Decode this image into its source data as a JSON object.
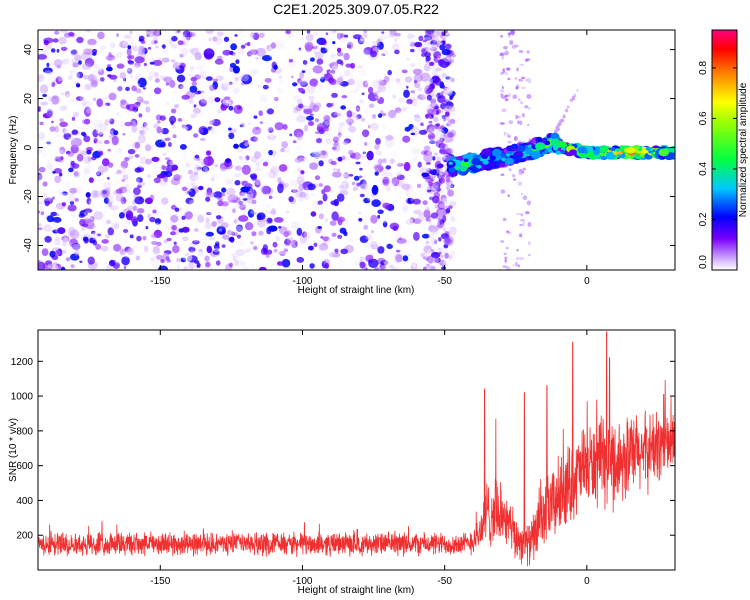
{
  "figure_title": "C2E1.2025.309.07.05.R22",
  "chart_data": [
    {
      "type": "heatmap",
      "title": "C2E1.2025.309.07.05.R22",
      "xlabel": "Height of straight line (km)",
      "ylabel": "Frequency (Hz)",
      "xlim": [
        -193,
        31
      ],
      "ylim": [
        -50,
        48
      ],
      "xticks": [
        -150,
        -100,
        -50,
        0
      ],
      "xtick_labels": [
        "-150",
        "-100",
        "-50",
        "0"
      ],
      "yticks": [
        -40,
        -20,
        0,
        20,
        40
      ],
      "ytick_labels": [
        "-40",
        "-20",
        "0",
        "20",
        "40"
      ],
      "colorbar": {
        "label": "Normalized spectral amplitude",
        "range": [
          0.0,
          0.95
        ],
        "ticks": [
          0.0,
          0.2,
          0.4,
          0.6,
          0.8
        ],
        "tick_labels": [
          "0.0",
          "0.2",
          "0.4",
          "0.6",
          "0.8"
        ],
        "colormap": [
          "#ffffff",
          "#7a00ff",
          "#0000ff",
          "#00c8ff",
          "#00ff40",
          "#ffff00",
          "#ff8000",
          "#ff0000",
          "#ff0080"
        ]
      },
      "features": {
        "noise_region_x": [
          -193,
          -47
        ],
        "sparse_streak_x": [
          -30,
          -20
        ],
        "signal_trace": {
          "x": [
            -48,
            -40,
            -30,
            -20,
            -12,
            -8,
            0,
            10,
            20,
            31
          ],
          "freq": [
            -8,
            -6,
            -4,
            -1,
            2,
            0,
            -2,
            -2,
            -2,
            -2
          ],
          "amplitude": [
            0.45,
            0.5,
            0.4,
            0.45,
            0.55,
            0.55,
            0.65,
            0.85,
            0.9,
            0.55
          ]
        },
        "diagonal_faint_line": {
          "x": [
            -12,
            -3
          ],
          "freq": [
            4,
            24
          ]
        }
      }
    },
    {
      "type": "line",
      "xlabel": "Height of straight line (km)",
      "ylabel": "SNR (10 * v/v)",
      "xlim": [
        -193,
        31
      ],
      "ylim": [
        0,
        1380
      ],
      "xticks": [
        -150,
        -100,
        -50,
        0
      ],
      "xtick_labels": [
        "-150",
        "-100",
        "-50",
        "0"
      ],
      "yticks": [
        200,
        400,
        600,
        800,
        1000,
        1200
      ],
      "ytick_labels": [
        "200",
        "400",
        "600",
        "800",
        "1000",
        "1200"
      ],
      "series": [
        {
          "name": "SNR",
          "color": "#f03030",
          "trend_x": [
            -193,
            -50,
            -42,
            -38,
            -35,
            -30,
            -25,
            -20,
            -15,
            -10,
            -5,
            0,
            10,
            20,
            31
          ],
          "trend_center": [
            150,
            150,
            150,
            200,
            330,
            320,
            180,
            150,
            310,
            420,
            520,
            600,
            620,
            680,
            740
          ],
          "trend_spread": [
            110,
            110,
            110,
            170,
            330,
            300,
            220,
            200,
            320,
            380,
            380,
            400,
            430,
            380,
            320
          ],
          "spikes": [
            {
              "x": -36,
              "value": 1040
            },
            {
              "x": -32,
              "value": 870
            },
            {
              "x": -22,
              "value": 1020
            },
            {
              "x": -14,
              "value": 1060
            },
            {
              "x": -5,
              "value": 1310
            },
            {
              "x": 7,
              "value": 1370
            },
            {
              "x": 8,
              "value": 1220
            },
            {
              "x": 27,
              "value": 1010
            }
          ]
        }
      ]
    }
  ]
}
